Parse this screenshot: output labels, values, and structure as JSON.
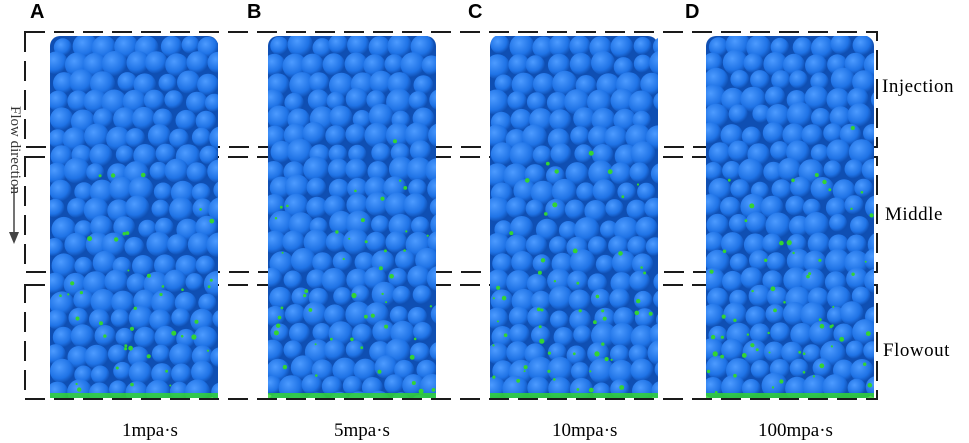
{
  "panels": [
    {
      "letter": "A",
      "viscosity": "1mpa·s"
    },
    {
      "letter": "B",
      "viscosity": "5mpa·s"
    },
    {
      "letter": "C",
      "viscosity": "10mpa·s"
    },
    {
      "letter": "D",
      "viscosity": "100mpa·s"
    }
  ],
  "zones": {
    "top": "Injection",
    "middle": "Middle",
    "bottom": "Flowout"
  },
  "flow_label": "Flow direction",
  "colors": {
    "particle": "#1f73e6",
    "particle_dark": "#0f4fb3",
    "fluid": "#33d433",
    "frame": "#1a1a1a"
  }
}
